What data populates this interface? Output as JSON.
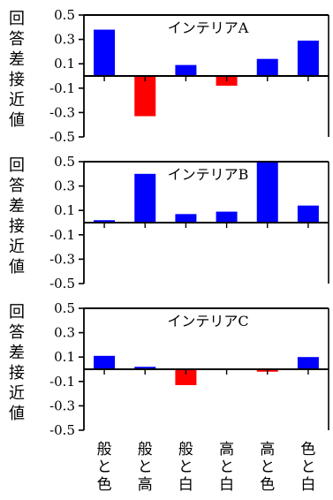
{
  "chart_data": [
    {
      "type": "bar",
      "title": "インテリアA",
      "ylabel": "回答差接近値",
      "ylim": [
        -0.5,
        0.5
      ],
      "yticks": [
        0.5,
        0.3,
        0.1,
        -0.1,
        -0.3,
        -0.5
      ],
      "ytick_labels": [
        "0.5",
        "0.3",
        "0.1",
        "-0.1",
        "-0.3",
        "-0.5"
      ],
      "categories": [
        "般と色",
        "般と高",
        "般と白",
        "高と白",
        "高と色",
        "色と白"
      ],
      "values": [
        0.38,
        -0.33,
        0.09,
        -0.08,
        0.14,
        0.29
      ],
      "positive_color": "#0000ff",
      "negative_color": "#ff0000",
      "grid": false
    },
    {
      "type": "bar",
      "title": "インテリアB",
      "ylabel": "回答差接近値",
      "ylim": [
        -0.5,
        0.5
      ],
      "yticks": [
        0.5,
        0.3,
        0.1,
        -0.1,
        -0.3,
        -0.5
      ],
      "ytick_labels": [
        "0.5",
        "0.3",
        "0.1",
        "-0.1",
        "-0.3",
        "-0.5"
      ],
      "categories": [
        "般と色",
        "般と高",
        "般と白",
        "高と白",
        "高と色",
        "色と白"
      ],
      "values": [
        0.02,
        0.4,
        0.07,
        0.09,
        0.5,
        0.14
      ],
      "positive_color": "#0000ff",
      "negative_color": "#ff0000",
      "grid": false
    },
    {
      "type": "bar",
      "title": "インテリアC",
      "ylabel": "回答差接近値",
      "ylim": [
        -0.5,
        0.5
      ],
      "yticks": [
        0.5,
        0.3,
        0.1,
        -0.1,
        -0.3,
        -0.5
      ],
      "ytick_labels": [
        "0.5",
        "0.3",
        "0.1",
        "-0.1",
        "-0.3",
        "-0.5"
      ],
      "categories": [
        "般と色",
        "般と高",
        "般と白",
        "高と白",
        "高と色",
        "色と白"
      ],
      "values": [
        0.11,
        0.02,
        -0.13,
        0.0,
        -0.02,
        0.1
      ],
      "positive_color": "#0000ff",
      "negative_color": "#ff0000",
      "grid": false
    }
  ]
}
